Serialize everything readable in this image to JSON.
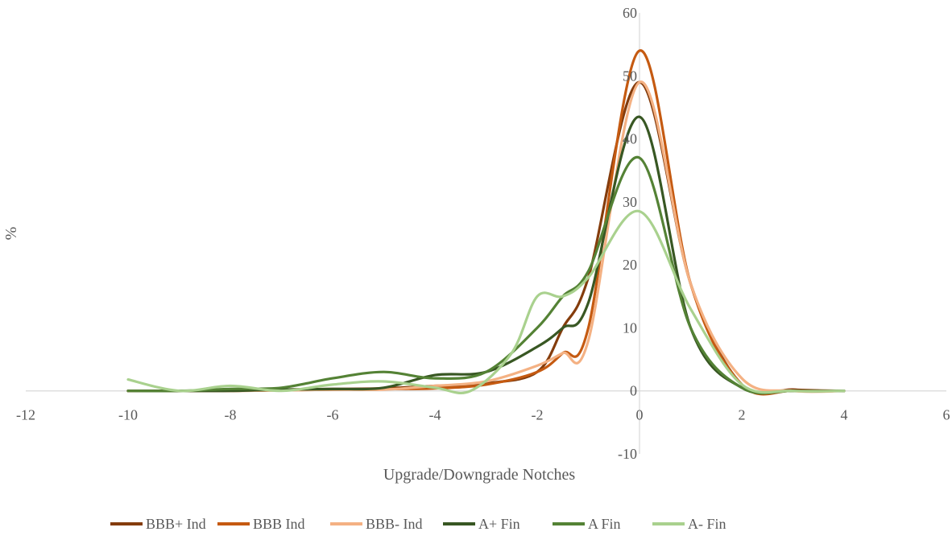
{
  "chart_data": {
    "type": "line",
    "title": "",
    "xlabel": "Upgrade/Downgrade Notches",
    "ylabel": "%",
    "xlim": [
      -12,
      6
    ],
    "ylim": [
      -10,
      60
    ],
    "x_ticks": [
      -12,
      -10,
      -8,
      -6,
      -4,
      -2,
      0,
      2,
      4,
      6
    ],
    "y_ticks": [
      -10,
      0,
      10,
      20,
      30,
      40,
      50,
      60
    ],
    "x_tick_labels": [
      "-12",
      "-10",
      "-8",
      "-6",
      "-4",
      "-2",
      "0",
      "2",
      "4",
      "6"
    ],
    "y_tick_labels": [
      "-10",
      "0",
      "10",
      "20",
      "30",
      "40",
      "50",
      "60"
    ],
    "grid": false,
    "smooth": true,
    "legend_position": "bottom",
    "series": [
      {
        "name": "BBB+ Ind",
        "color": "#843c0c",
        "points": [
          [
            -10,
            0
          ],
          [
            -9,
            0
          ],
          [
            -8,
            0
          ],
          [
            -7,
            0.2
          ],
          [
            -6,
            0.3
          ],
          [
            -5,
            0.4
          ],
          [
            -4,
            0.8
          ],
          [
            -3,
            1.2
          ],
          [
            -2,
            3
          ],
          [
            -1.5,
            10
          ],
          [
            -1,
            18
          ],
          [
            0,
            49
          ],
          [
            1,
            17
          ],
          [
            2,
            1
          ],
          [
            3,
            0.2
          ],
          [
            4,
            0
          ]
        ]
      },
      {
        "name": "BBB Ind",
        "color": "#c55a11",
        "points": [
          [
            -10,
            0
          ],
          [
            -9,
            0
          ],
          [
            -8,
            0
          ],
          [
            -7,
            0.1
          ],
          [
            -6,
            0.2
          ],
          [
            -5,
            0.3
          ],
          [
            -4,
            0.4
          ],
          [
            -3,
            1
          ],
          [
            -2,
            3
          ],
          [
            -1.5,
            6
          ],
          [
            -1,
            10
          ],
          [
            0,
            54
          ],
          [
            1,
            17
          ],
          [
            2,
            1
          ],
          [
            3,
            0
          ],
          [
            4,
            0
          ]
        ]
      },
      {
        "name": "BBB- Ind",
        "color": "#f4b183",
        "points": [
          [
            -10,
            0
          ],
          [
            -9,
            0
          ],
          [
            -8,
            0
          ],
          [
            -7,
            0.1
          ],
          [
            -6,
            0.2
          ],
          [
            -5,
            0.2
          ],
          [
            -4,
            0.8
          ],
          [
            -3,
            1.5
          ],
          [
            -2,
            4
          ],
          [
            -1.5,
            6
          ],
          [
            -1,
            8
          ],
          [
            0,
            49
          ],
          [
            1,
            17
          ],
          [
            2,
            2
          ],
          [
            3,
            0
          ],
          [
            4,
            0
          ]
        ]
      },
      {
        "name": "A+ Fin",
        "color": "#385723",
        "points": [
          [
            -10,
            0
          ],
          [
            -9,
            0
          ],
          [
            -8,
            0
          ],
          [
            -7,
            0.2
          ],
          [
            -6,
            0.3
          ],
          [
            -5,
            0.5
          ],
          [
            -4,
            2.5
          ],
          [
            -3,
            3
          ],
          [
            -2,
            7
          ],
          [
            -1.5,
            10
          ],
          [
            -1,
            14
          ],
          [
            0,
            43.5
          ],
          [
            1,
            10
          ],
          [
            2,
            0.5
          ],
          [
            3,
            0
          ],
          [
            4,
            0
          ]
        ]
      },
      {
        "name": "A Fin",
        "color": "#548235",
        "points": [
          [
            -10,
            0
          ],
          [
            -9,
            0
          ],
          [
            -8,
            0.3
          ],
          [
            -7,
            0.5
          ],
          [
            -6,
            2
          ],
          [
            -5,
            3
          ],
          [
            -4,
            2
          ],
          [
            -3,
            3
          ],
          [
            -2,
            10
          ],
          [
            -1.5,
            15
          ],
          [
            -1,
            19
          ],
          [
            0,
            37
          ],
          [
            1,
            10
          ],
          [
            2,
            0.5
          ],
          [
            3,
            0
          ],
          [
            4,
            0
          ]
        ]
      },
      {
        "name": "A- Fin",
        "color": "#a9d18e",
        "points": [
          [
            -10,
            1.8
          ],
          [
            -9,
            0
          ],
          [
            -8,
            0.8
          ],
          [
            -7,
            0
          ],
          [
            -6,
            1
          ],
          [
            -5,
            1.5
          ],
          [
            -4,
            0.5
          ],
          [
            -3.3,
            0
          ],
          [
            -2.5,
            6
          ],
          [
            -2,
            15
          ],
          [
            -1.5,
            15
          ],
          [
            -1,
            18
          ],
          [
            0,
            28.5
          ],
          [
            1,
            13
          ],
          [
            2,
            1
          ],
          [
            3,
            0
          ],
          [
            4,
            0
          ]
        ]
      }
    ]
  }
}
